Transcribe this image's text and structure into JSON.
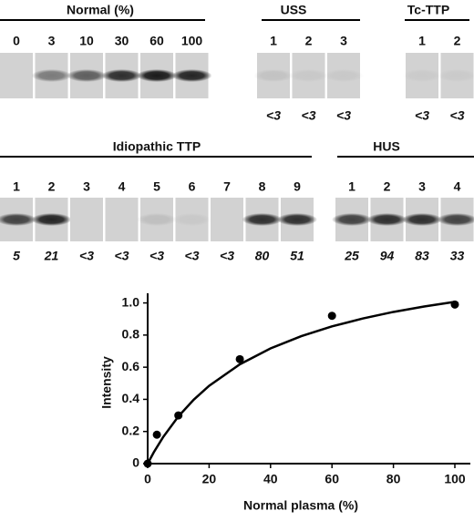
{
  "gels": [
    {
      "title": "Normal (%)",
      "lanes": [
        "0",
        "3",
        "10",
        "30",
        "60",
        "100"
      ]
    },
    {
      "title": "USS",
      "lanes": [
        "1",
        "2",
        "3"
      ],
      "values": [
        "<3",
        "<3",
        "<3"
      ]
    },
    {
      "title": "Tc-TTP",
      "lanes": [
        "1",
        "2"
      ],
      "values": [
        "<3",
        "<3"
      ]
    },
    {
      "title": "Idiopathic TTP",
      "lanes": [
        "1",
        "2",
        "3",
        "4",
        "5",
        "6",
        "7",
        "8",
        "9"
      ],
      "values": [
        "5",
        "21",
        "<3",
        "<3",
        "<3",
        "<3",
        "<3",
        "80",
        "51"
      ]
    },
    {
      "title": "HUS",
      "lanes": [
        "1",
        "2",
        "3",
        "4"
      ],
      "values": [
        "25",
        "94",
        "83",
        "33"
      ]
    }
  ],
  "chart_data": {
    "type": "scatter",
    "x_label": "Normal plasma (%)",
    "y_label": "Intensity",
    "x": [
      0,
      3,
      10,
      30,
      60,
      100
    ],
    "series": [
      {
        "color": "#000000",
        "values": [
          0,
          0.18,
          0.3,
          0.65,
          0.92,
          0.99
        ]
      }
    ],
    "curve": {
      "color": "#000000",
      "x": [
        0,
        2,
        5,
        10,
        15,
        20,
        30,
        40,
        50,
        60,
        70,
        80,
        90,
        100
      ],
      "values": [
        0,
        0.071,
        0.164,
        0.294,
        0.398,
        0.484,
        0.618,
        0.717,
        0.793,
        0.854,
        0.903,
        0.944,
        0.978,
        1.007
      ]
    },
    "xlim": [
      0,
      103
    ],
    "ylim": [
      0,
      1.06
    ],
    "xticks": [
      0,
      20,
      40,
      60,
      80,
      100
    ],
    "yticks": [
      0,
      {
        "value": 0.2,
        "label": "0.2"
      },
      {
        "value": 0.4,
        "label": "0.4"
      },
      {
        "value": 0.6,
        "label": "0.6"
      },
      {
        "value": 0.8,
        "label": "0.8"
      },
      {
        "value": 1,
        "label": "1.0"
      }
    ]
  }
}
